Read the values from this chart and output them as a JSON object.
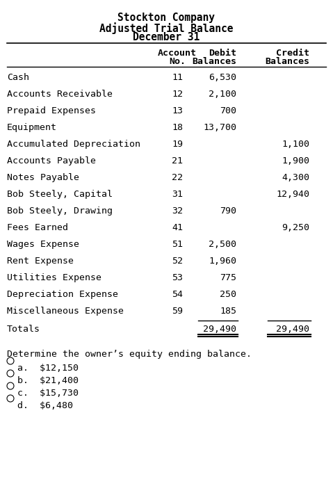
{
  "title_lines": [
    "Stockton Company",
    "Adjusted Trial Balance",
    "December 31"
  ],
  "header": [
    "",
    "Account\nNo.",
    "Debit\nBalances",
    "Credit\nBalances"
  ],
  "rows": [
    [
      "Cash",
      "11",
      "6,530",
      ""
    ],
    [
      "Accounts Receivable",
      "12",
      "2,100",
      ""
    ],
    [
      "Prepaid Expenses",
      "13",
      "700",
      ""
    ],
    [
      "Equipment",
      "18",
      "13,700",
      ""
    ],
    [
      "Accumulated Depreciation",
      "19",
      "",
      "1,100"
    ],
    [
      "Accounts Payable",
      "21",
      "",
      "1,900"
    ],
    [
      "Notes Payable",
      "22",
      "",
      "4,300"
    ],
    [
      "Bob Steely, Capital",
      "31",
      "",
      "12,940"
    ],
    [
      "Bob Steely, Drawing",
      "32",
      "790",
      ""
    ],
    [
      "Fees Earned",
      "41",
      "",
      "9,250"
    ],
    [
      "Wages Expense",
      "51",
      "2,500",
      ""
    ],
    [
      "Rent Expense",
      "52",
      "1,960",
      ""
    ],
    [
      "Utilities Expense",
      "53",
      "775",
      ""
    ],
    [
      "Depreciation Expense",
      "54",
      "250",
      ""
    ],
    [
      "Miscellaneous Expense",
      "59",
      "185",
      ""
    ]
  ],
  "totals_label": "Totals",
  "totals_debit": "29,490",
  "totals_credit": "29,490",
  "question": "Determine the owner’s equity ending balance.",
  "options": [
    "a.  $12,150",
    "b.  $21,400",
    "c.  $15,730",
    "d.  $6,480"
  ],
  "bg_color": "#ffffff",
  "text_color": "#000000",
  "font_size": 9.5,
  "title_font_size": 10.5
}
